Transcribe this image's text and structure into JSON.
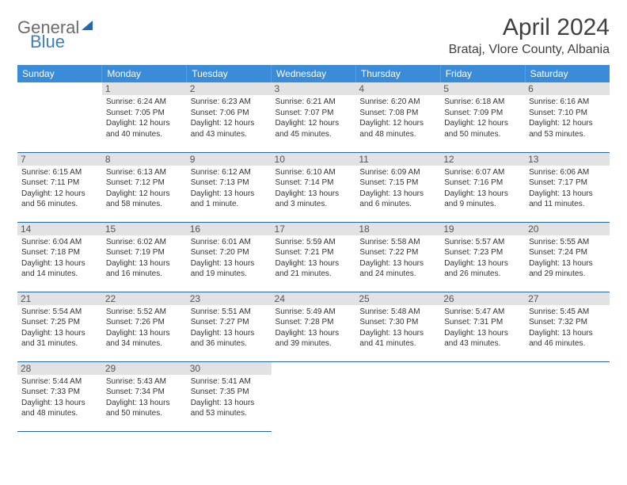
{
  "logo": {
    "part1": "General",
    "part2": "Blue"
  },
  "title": "April 2024",
  "location": "Brataj, Vlore County, Albania",
  "colors": {
    "header_bg": "#3a8bd8",
    "header_text": "#ffffff",
    "daynum_bg": "#e2e2e2",
    "border": "#2268b0",
    "logo_gray": "#6b6b6b",
    "logo_blue": "#3a7fc4"
  },
  "weekdays": [
    "Sunday",
    "Monday",
    "Tuesday",
    "Wednesday",
    "Thursday",
    "Friday",
    "Saturday"
  ],
  "weeks": [
    [
      null,
      {
        "n": "1",
        "sr": "Sunrise: 6:24 AM",
        "ss": "Sunset: 7:05 PM",
        "d1": "Daylight: 12 hours",
        "d2": "and 40 minutes."
      },
      {
        "n": "2",
        "sr": "Sunrise: 6:23 AM",
        "ss": "Sunset: 7:06 PM",
        "d1": "Daylight: 12 hours",
        "d2": "and 43 minutes."
      },
      {
        "n": "3",
        "sr": "Sunrise: 6:21 AM",
        "ss": "Sunset: 7:07 PM",
        "d1": "Daylight: 12 hours",
        "d2": "and 45 minutes."
      },
      {
        "n": "4",
        "sr": "Sunrise: 6:20 AM",
        "ss": "Sunset: 7:08 PM",
        "d1": "Daylight: 12 hours",
        "d2": "and 48 minutes."
      },
      {
        "n": "5",
        "sr": "Sunrise: 6:18 AM",
        "ss": "Sunset: 7:09 PM",
        "d1": "Daylight: 12 hours",
        "d2": "and 50 minutes."
      },
      {
        "n": "6",
        "sr": "Sunrise: 6:16 AM",
        "ss": "Sunset: 7:10 PM",
        "d1": "Daylight: 12 hours",
        "d2": "and 53 minutes."
      }
    ],
    [
      {
        "n": "7",
        "sr": "Sunrise: 6:15 AM",
        "ss": "Sunset: 7:11 PM",
        "d1": "Daylight: 12 hours",
        "d2": "and 56 minutes."
      },
      {
        "n": "8",
        "sr": "Sunrise: 6:13 AM",
        "ss": "Sunset: 7:12 PM",
        "d1": "Daylight: 12 hours",
        "d2": "and 58 minutes."
      },
      {
        "n": "9",
        "sr": "Sunrise: 6:12 AM",
        "ss": "Sunset: 7:13 PM",
        "d1": "Daylight: 13 hours",
        "d2": "and 1 minute."
      },
      {
        "n": "10",
        "sr": "Sunrise: 6:10 AM",
        "ss": "Sunset: 7:14 PM",
        "d1": "Daylight: 13 hours",
        "d2": "and 3 minutes."
      },
      {
        "n": "11",
        "sr": "Sunrise: 6:09 AM",
        "ss": "Sunset: 7:15 PM",
        "d1": "Daylight: 13 hours",
        "d2": "and 6 minutes."
      },
      {
        "n": "12",
        "sr": "Sunrise: 6:07 AM",
        "ss": "Sunset: 7:16 PM",
        "d1": "Daylight: 13 hours",
        "d2": "and 9 minutes."
      },
      {
        "n": "13",
        "sr": "Sunrise: 6:06 AM",
        "ss": "Sunset: 7:17 PM",
        "d1": "Daylight: 13 hours",
        "d2": "and 11 minutes."
      }
    ],
    [
      {
        "n": "14",
        "sr": "Sunrise: 6:04 AM",
        "ss": "Sunset: 7:18 PM",
        "d1": "Daylight: 13 hours",
        "d2": "and 14 minutes."
      },
      {
        "n": "15",
        "sr": "Sunrise: 6:02 AM",
        "ss": "Sunset: 7:19 PM",
        "d1": "Daylight: 13 hours",
        "d2": "and 16 minutes."
      },
      {
        "n": "16",
        "sr": "Sunrise: 6:01 AM",
        "ss": "Sunset: 7:20 PM",
        "d1": "Daylight: 13 hours",
        "d2": "and 19 minutes."
      },
      {
        "n": "17",
        "sr": "Sunrise: 5:59 AM",
        "ss": "Sunset: 7:21 PM",
        "d1": "Daylight: 13 hours",
        "d2": "and 21 minutes."
      },
      {
        "n": "18",
        "sr": "Sunrise: 5:58 AM",
        "ss": "Sunset: 7:22 PM",
        "d1": "Daylight: 13 hours",
        "d2": "and 24 minutes."
      },
      {
        "n": "19",
        "sr": "Sunrise: 5:57 AM",
        "ss": "Sunset: 7:23 PM",
        "d1": "Daylight: 13 hours",
        "d2": "and 26 minutes."
      },
      {
        "n": "20",
        "sr": "Sunrise: 5:55 AM",
        "ss": "Sunset: 7:24 PM",
        "d1": "Daylight: 13 hours",
        "d2": "and 29 minutes."
      }
    ],
    [
      {
        "n": "21",
        "sr": "Sunrise: 5:54 AM",
        "ss": "Sunset: 7:25 PM",
        "d1": "Daylight: 13 hours",
        "d2": "and 31 minutes."
      },
      {
        "n": "22",
        "sr": "Sunrise: 5:52 AM",
        "ss": "Sunset: 7:26 PM",
        "d1": "Daylight: 13 hours",
        "d2": "and 34 minutes."
      },
      {
        "n": "23",
        "sr": "Sunrise: 5:51 AM",
        "ss": "Sunset: 7:27 PM",
        "d1": "Daylight: 13 hours",
        "d2": "and 36 minutes."
      },
      {
        "n": "24",
        "sr": "Sunrise: 5:49 AM",
        "ss": "Sunset: 7:28 PM",
        "d1": "Daylight: 13 hours",
        "d2": "and 39 minutes."
      },
      {
        "n": "25",
        "sr": "Sunrise: 5:48 AM",
        "ss": "Sunset: 7:30 PM",
        "d1": "Daylight: 13 hours",
        "d2": "and 41 minutes."
      },
      {
        "n": "26",
        "sr": "Sunrise: 5:47 AM",
        "ss": "Sunset: 7:31 PM",
        "d1": "Daylight: 13 hours",
        "d2": "and 43 minutes."
      },
      {
        "n": "27",
        "sr": "Sunrise: 5:45 AM",
        "ss": "Sunset: 7:32 PM",
        "d1": "Daylight: 13 hours",
        "d2": "and 46 minutes."
      }
    ],
    [
      {
        "n": "28",
        "sr": "Sunrise: 5:44 AM",
        "ss": "Sunset: 7:33 PM",
        "d1": "Daylight: 13 hours",
        "d2": "and 48 minutes."
      },
      {
        "n": "29",
        "sr": "Sunrise: 5:43 AM",
        "ss": "Sunset: 7:34 PM",
        "d1": "Daylight: 13 hours",
        "d2": "and 50 minutes."
      },
      {
        "n": "30",
        "sr": "Sunrise: 5:41 AM",
        "ss": "Sunset: 7:35 PM",
        "d1": "Daylight: 13 hours",
        "d2": "and 53 minutes."
      },
      null,
      null,
      null,
      null
    ]
  ]
}
